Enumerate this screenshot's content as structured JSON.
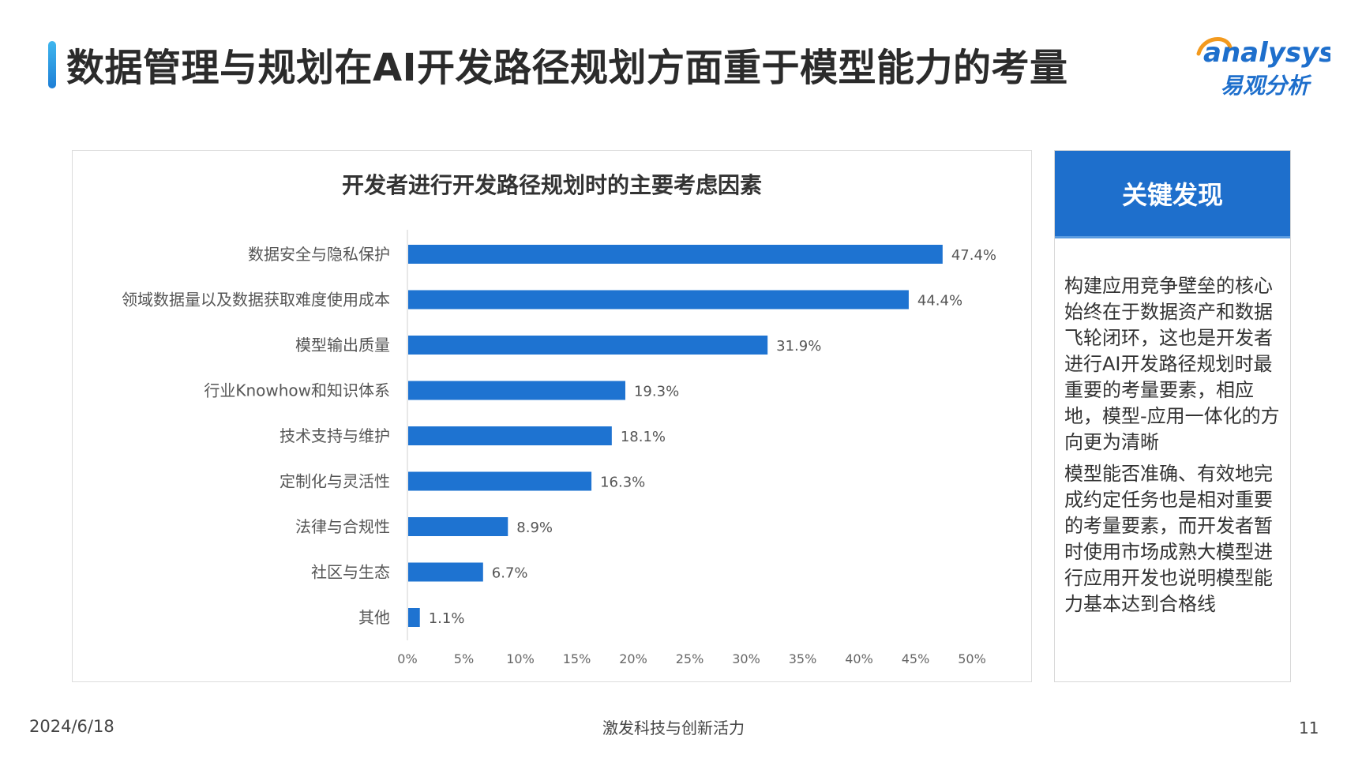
{
  "header": {
    "title": "数据管理与规划在AI开发路径规划方面重于模型能力的考量",
    "logo_en": "analysys",
    "logo_cn": "易观分析"
  },
  "chart_data": {
    "type": "bar",
    "orientation": "horizontal",
    "title": "开发者进行开发路径规划时的主要考虑因素",
    "categories": [
      "数据安全与隐私保护",
      "领域数据量以及数据获取难度使用成本",
      "模型输出质量",
      "行业Knowhow和知识体系",
      "技术支持与维护",
      "定制化与灵活性",
      "法律与合规性",
      "社区与生态",
      "其他"
    ],
    "values": [
      47.4,
      44.4,
      31.9,
      19.3,
      18.1,
      16.3,
      8.9,
      6.7,
      1.1
    ],
    "value_labels": [
      "47.4%",
      "44.4%",
      "31.9%",
      "19.3%",
      "18.1%",
      "16.3%",
      "8.9%",
      "6.7%",
      "1.1%"
    ],
    "xlim": [
      0,
      50
    ],
    "xticks": [
      "0%",
      "5%",
      "10%",
      "15%",
      "20%",
      "25%",
      "30%",
      "35%",
      "40%",
      "45%",
      "50%"
    ],
    "bar_color": "#1e73d1",
    "grid": false,
    "legend": "none"
  },
  "panel": {
    "header": "关键发现",
    "paragraph1": "构建应用竞争壁垒的核心始终在于数据资产和数据飞轮闭环，这也是开发者进行AI开发路径规划时最重要的考量要素，相应地，模型-应用一体化的方向更为清晰",
    "paragraph2": "模型能否准确、有效地完成约定任务也是相对重要的考量要素，而开发者暂时使用市场成熟大模型进行应用开发也说明模型能力基本达到合格线"
  },
  "footer": {
    "date": "2024/6/18",
    "slogan": "激发科技与创新活力",
    "page": "11"
  },
  "colors": {
    "accent": "#1e6fcc",
    "bar": "#1e73d1",
    "logo_orange": "#f39a1e"
  }
}
